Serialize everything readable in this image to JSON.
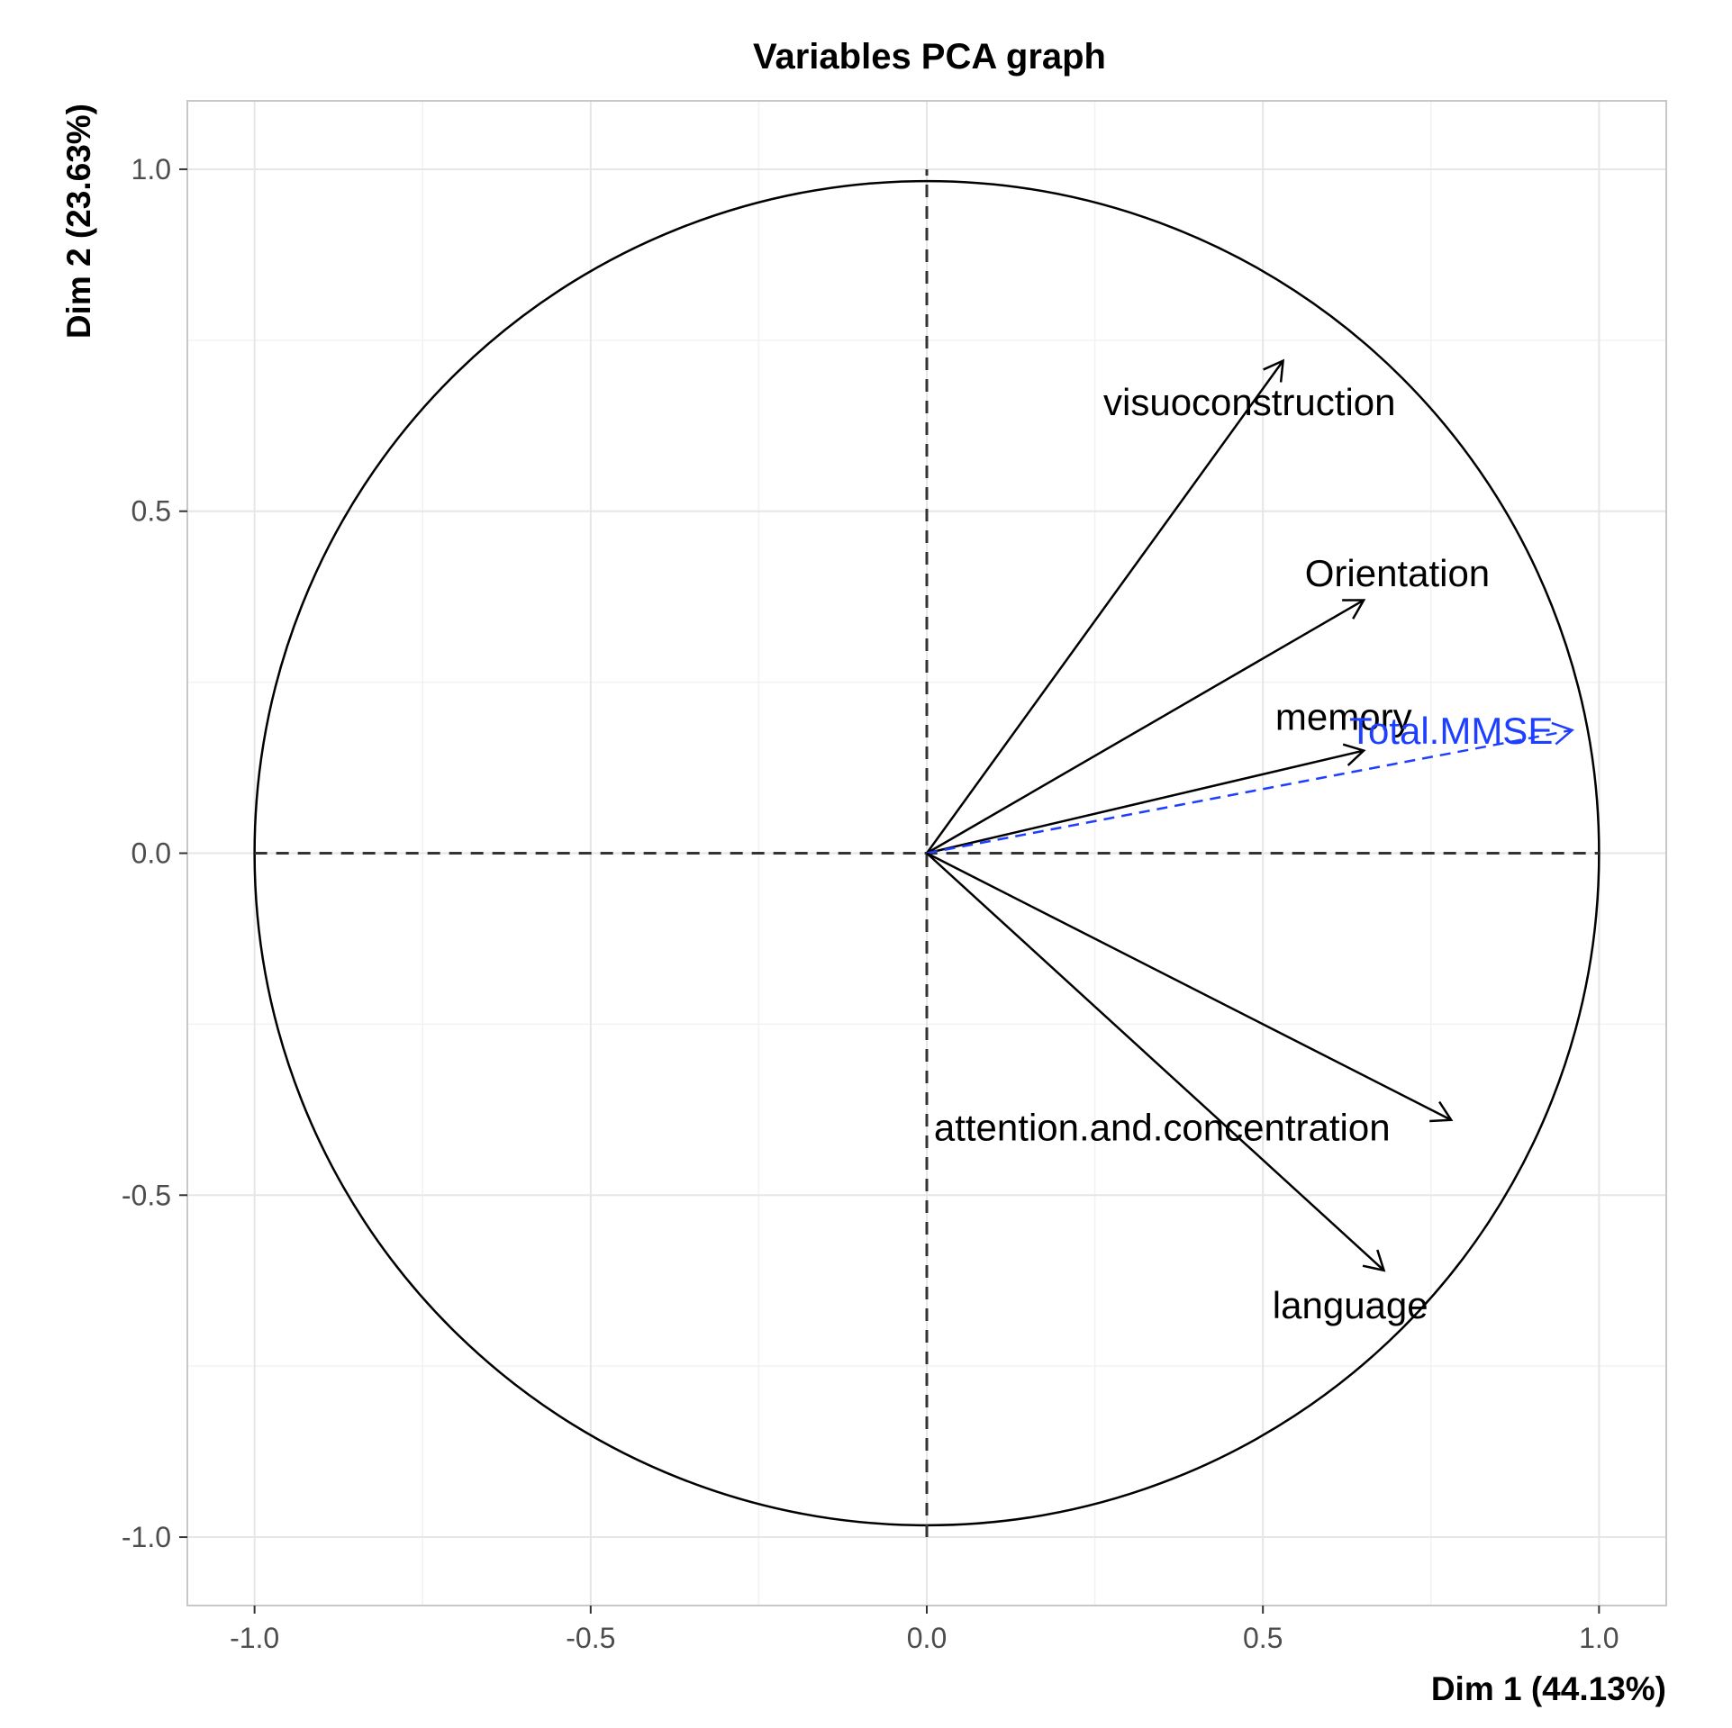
{
  "chart_data": {
    "type": "scatter",
    "subtype": "pca-variable-correlation-circle",
    "title": "Variables PCA graph",
    "xlabel": "Dim 1 (44.13%)",
    "ylabel": "Dim 2 (23.63%)",
    "xlim": [
      -1.1,
      1.1
    ],
    "ylim": [
      -1.1,
      1.1
    ],
    "xticks": [
      -1.0,
      -0.5,
      0.0,
      0.5,
      1.0
    ],
    "yticks": [
      -1.0,
      -0.5,
      0.0,
      0.5,
      1.0
    ],
    "xtick_labels": [
      "-1.0",
      "-0.5",
      "0.0",
      "0.5",
      "1.0"
    ],
    "ytick_labels": [
      "-1.0",
      "-0.5",
      "0.0",
      "0.5",
      "1.0"
    ],
    "grid": true,
    "unit_circle": true,
    "variables": [
      {
        "name": "visuoconstruction",
        "x": 0.53,
        "y": 0.72,
        "label_x": 0.48,
        "label_y": 0.66,
        "color": "#000000",
        "supplementary": false
      },
      {
        "name": "Orientation",
        "x": 0.65,
        "y": 0.37,
        "label_x": 0.7,
        "label_y": 0.41,
        "color": "#000000",
        "supplementary": false
      },
      {
        "name": "memory",
        "x": 0.65,
        "y": 0.15,
        "label_x": 0.62,
        "label_y": 0.2,
        "color": "#000000",
        "supplementary": false
      },
      {
        "name": "Total.MMSE",
        "x": 0.96,
        "y": 0.18,
        "label_x": 0.78,
        "label_y": 0.18,
        "color": "#1f3fff",
        "supplementary": true
      },
      {
        "name": "attention.and.concentration",
        "x": 0.78,
        "y": -0.39,
        "label_x": 0.35,
        "label_y": -0.4,
        "color": "#000000",
        "supplementary": false
      },
      {
        "name": "language",
        "x": 0.68,
        "y": -0.61,
        "label_x": 0.63,
        "label_y": -0.66,
        "color": "#000000",
        "supplementary": false
      }
    ]
  }
}
